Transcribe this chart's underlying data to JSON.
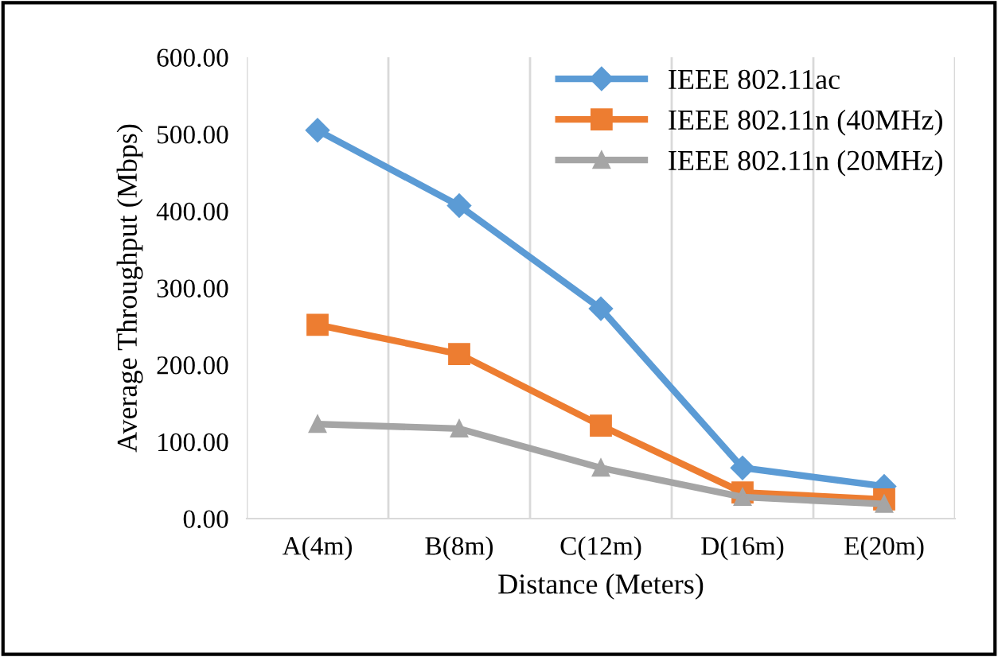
{
  "chart_data": {
    "type": "line",
    "xlabel": "Distance (Meters)",
    "ylabel": "Average Throughput (Mbps)",
    "categories": [
      "A(4m)",
      "B(8m)",
      "C(12m)",
      "D(16m)",
      "E(20m)"
    ],
    "series": [
      {
        "name": "IEEE 802.11ac",
        "color": "#5b9bd5",
        "marker": "diamond",
        "values": [
          505,
          407,
          273,
          66,
          42
        ]
      },
      {
        "name": "IEEE 802.11n (40MHz)",
        "color": "#ed7d31",
        "marker": "square",
        "values": [
          252,
          214,
          121,
          34,
          25
        ]
      },
      {
        "name": "IEEE 802.11n (20MHz)",
        "color": "#a5a5a5",
        "marker": "triangle",
        "values": [
          123,
          117,
          66,
          28,
          19
        ]
      }
    ],
    "ylim": [
      0,
      600
    ],
    "yticks": [
      {
        "value": 0,
        "label": "0.00"
      },
      {
        "value": 100,
        "label": "100.00"
      },
      {
        "value": 200,
        "label": "200.00"
      },
      {
        "value": 300,
        "label": "300.00"
      },
      {
        "value": 400,
        "label": "400.00"
      },
      {
        "value": 500,
        "label": "500.00"
      },
      {
        "value": 600,
        "label": "600.00"
      }
    ],
    "grid": "x",
    "legend": "top right",
    "line_style": "solid"
  }
}
